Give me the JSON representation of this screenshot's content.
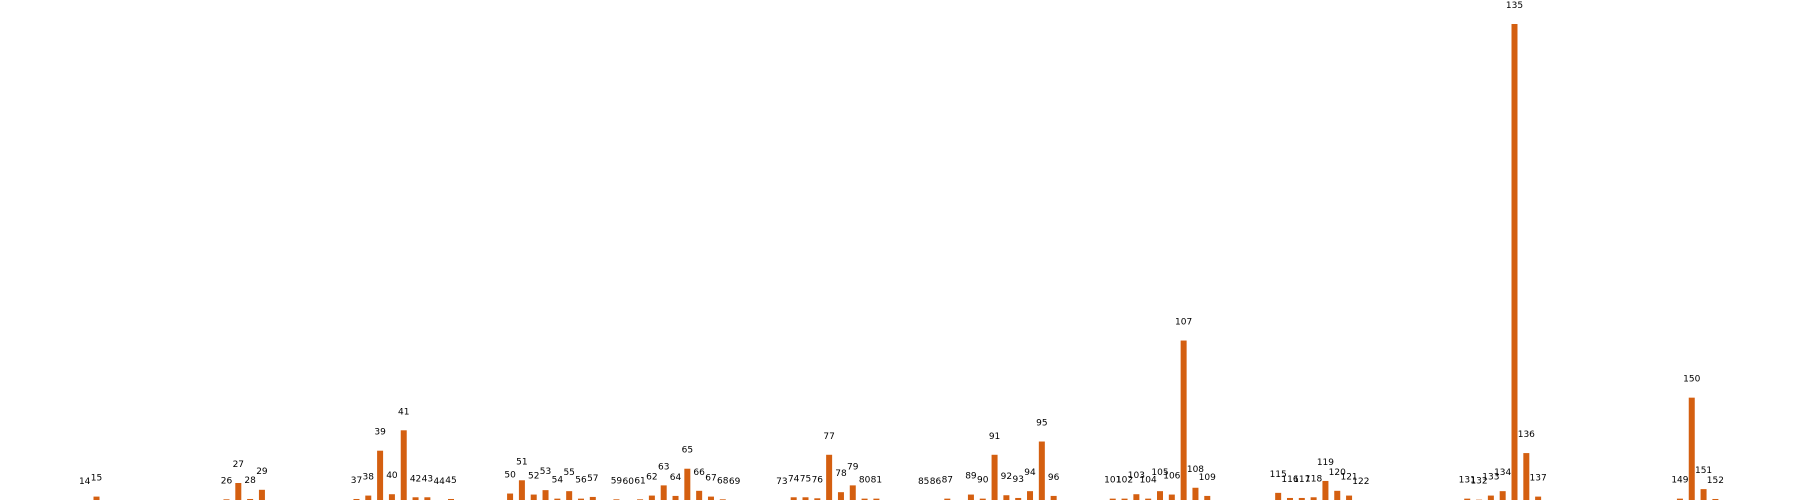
{
  "chart_data": {
    "type": "bar",
    "title": "",
    "xlabel": "",
    "ylabel": "",
    "grid": false,
    "bar_color": "#d45f10",
    "ylim": [
      0,
      140
    ],
    "categories": [
      14,
      15,
      26,
      27,
      28,
      29,
      37,
      38,
      39,
      40,
      41,
      42,
      43,
      44,
      45,
      50,
      51,
      52,
      53,
      54,
      55,
      56,
      57,
      59,
      60,
      61,
      62,
      63,
      64,
      65,
      66,
      67,
      68,
      69,
      73,
      74,
      75,
      76,
      77,
      78,
      79,
      80,
      81,
      85,
      86,
      87,
      89,
      90,
      91,
      92,
      93,
      94,
      95,
      96,
      101,
      102,
      103,
      104,
      105,
      106,
      107,
      108,
      109,
      115,
      116,
      117,
      118,
      119,
      120,
      121,
      122,
      131,
      132,
      133,
      134,
      135,
      136,
      137,
      149,
      150,
      151,
      152
    ],
    "labels": [
      "14",
      "15",
      "26",
      "27",
      "28",
      "29",
      "37",
      "38",
      "39",
      "40",
      "41",
      "42",
      "43",
      "44",
      "45",
      "50",
      "51",
      "52",
      "53",
      "54",
      "55",
      "56",
      "57",
      "59",
      "60",
      "61",
      "62",
      "63",
      "64",
      "65",
      "66",
      "67",
      "68",
      "69",
      "73",
      "74",
      "75",
      "76",
      "77",
      "78",
      "79",
      "80",
      "81",
      "85",
      "86",
      "87",
      "89",
      "90",
      "91",
      "92",
      "93",
      "94",
      "95",
      "96",
      "101",
      "102",
      "103",
      "104",
      "105",
      "106",
      "107",
      "108",
      "109",
      "115",
      "116",
      "117",
      "118",
      "119",
      "120",
      "121",
      "122",
      "131",
      "132",
      "133",
      "134",
      "135",
      "136",
      "137",
      "149",
      "150",
      "151",
      "152"
    ],
    "values": [
      0,
      1,
      0.2,
      5,
      0.3,
      3,
      0.3,
      1.3,
      14.5,
      1.7,
      20.5,
      0.8,
      0.8,
      0,
      0.3,
      1.9,
      5.8,
      1.6,
      2.9,
      0.4,
      2.6,
      0.4,
      0.9,
      0.2,
      0,
      0.2,
      1.3,
      4.3,
      1.2,
      9.2,
      2.7,
      1,
      0.2,
      0,
      0,
      0.8,
      0.8,
      0.5,
      13.3,
      2.3,
      4.3,
      0.4,
      0.4,
      0,
      0,
      0.4,
      1.6,
      0.4,
      13.3,
      1.4,
      0.6,
      2.6,
      17.2,
      1.2,
      0.4,
      0.4,
      1.7,
      0.4,
      2.6,
      1.6,
      46.9,
      3.6,
      1.2,
      2.1,
      0.6,
      0.6,
      0.8,
      5.6,
      2.7,
      1.3,
      0,
      0.4,
      0.1,
      1.3,
      2.6,
      140,
      13.8,
      1,
      0.4,
      30.1,
      3.2,
      0.3
    ]
  }
}
